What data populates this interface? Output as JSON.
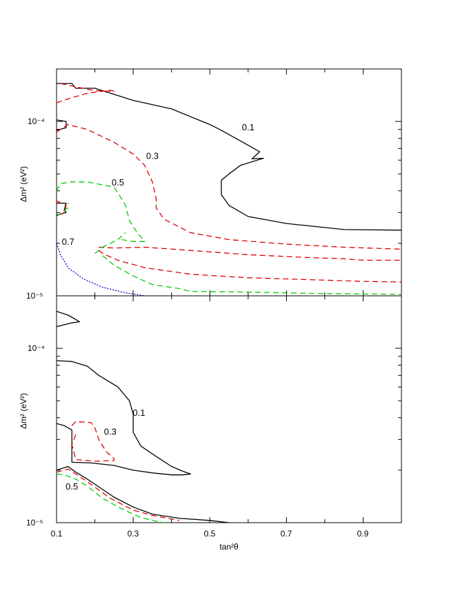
{
  "chart_data": [
    {
      "type": "line",
      "panel": "top",
      "xlim": [
        0.1,
        1.0
      ],
      "ylim": [
        1e-05,
        0.0002
      ],
      "yscale": "log",
      "ylabel": "Δm² (eV²)",
      "xlabel": "",
      "y_ticks": [
        {
          "value": 0.0001,
          "label": "10⁻⁴"
        },
        {
          "value": 1e-05,
          "label": "10⁻⁵"
        }
      ],
      "x_ticks": [],
      "grid": false,
      "colors": {
        "0.1": "#000000",
        "0.3": "#dd0000",
        "0.5": "#00cc00",
        "0.7": "#0000cc"
      },
      "contour_labels": [
        {
          "text": "0.1",
          "x": 0.6,
          "y": 8.9e-05
        },
        {
          "text": "0.3",
          "x": 0.35,
          "y": 6.1e-05
        },
        {
          "text": "0.5",
          "x": 0.26,
          "y": 4.3e-05
        },
        {
          "text": "0.7",
          "x": 0.13,
          "y": 1.96e-05
        }
      ],
      "series": [
        {
          "name": "0.1",
          "style": "solid",
          "points": [
            [
              0.1,
              0.000165
            ],
            [
              0.14,
              0.000165
            ],
            [
              0.15,
              0.000155
            ],
            [
              0.2,
              0.000155
            ],
            [
              0.3,
              0.000132
            ],
            [
              0.4,
              0.000118
            ],
            [
              0.5,
              9.6e-05
            ],
            [
              0.53,
              8.9e-05
            ],
            [
              0.6,
              7.3e-05
            ],
            [
              0.63,
              6.7e-05
            ],
            [
              0.61,
              6.1e-05
            ],
            [
              0.64,
              6.15e-05
            ],
            [
              0.58,
              5.6e-05
            ],
            [
              0.55,
              5e-05
            ],
            [
              0.53,
              4.6e-05
            ],
            [
              0.53,
              3.8e-05
            ],
            [
              0.55,
              3.3e-05
            ],
            [
              0.6,
              2.85e-05
            ],
            [
              0.7,
              2.6e-05
            ],
            [
              0.85,
              2.4e-05
            ],
            [
              1.0,
              2.38e-05
            ]
          ]
        },
        {
          "name": "0.1",
          "style": "solid",
          "points": [
            [
              0.1,
              0.000102
            ],
            [
              0.125,
              0.0001
            ],
            [
              0.125,
              9.2e-05
            ],
            [
              0.1,
              8.9e-05
            ]
          ]
        },
        {
          "name": "0.1",
          "style": "solid",
          "points": [
            [
              0.1,
              3.4e-05
            ],
            [
              0.125,
              3.4e-05
            ],
            [
              0.12,
              3.1e-05
            ],
            [
              0.125,
              3e-05
            ],
            [
              0.1,
              2.9e-05
            ]
          ]
        },
        {
          "name": "0.3",
          "style": "dashed",
          "points": [
            [
              0.1,
              0.000128
            ],
            [
              0.14,
              0.000137
            ],
            [
              0.18,
              0.000145
            ],
            [
              0.24,
              0.000151
            ],
            [
              0.25,
              0.000149
            ],
            [
              0.2,
              0.00015
            ],
            [
              0.15,
              0.000158
            ],
            [
              0.11,
              0.000165
            ]
          ]
        },
        {
          "name": "0.3",
          "style": "dashed",
          "points": [
            [
              0.1,
              8.7e-05
            ],
            [
              0.13,
              9.6e-05
            ],
            [
              0.18,
              9e-05
            ],
            [
              0.25,
              7.6e-05
            ],
            [
              0.3,
              6.5e-05
            ],
            [
              0.33,
              5.6e-05
            ],
            [
              0.35,
              4.5e-05
            ],
            [
              0.36,
              3.6e-05
            ],
            [
              0.36,
              3.2e-05
            ],
            [
              0.38,
              2.75e-05
            ],
            [
              0.45,
              2.3e-05
            ],
            [
              0.55,
              2.1e-05
            ],
            [
              0.7,
              1.98e-05
            ],
            [
              0.85,
              1.9e-05
            ],
            [
              1.0,
              1.85e-05
            ]
          ]
        },
        {
          "name": "0.3",
          "style": "dashed",
          "points": [
            [
              0.1,
              3.5e-05
            ],
            [
              0.125,
              3.3e-05
            ],
            [
              0.12,
              3e-05
            ],
            [
              0.105,
              2.9e-05
            ]
          ]
        },
        {
          "name": "0.3",
          "style": "dashed",
          "points": [
            [
              0.21,
              1.9e-05
            ],
            [
              0.25,
              1.88e-05
            ],
            [
              0.33,
              1.9e-05
            ],
            [
              0.45,
              1.82e-05
            ],
            [
              0.6,
              1.72e-05
            ],
            [
              0.75,
              1.66e-05
            ],
            [
              0.85,
              1.63e-05
            ],
            [
              0.9,
              1.6e-05
            ],
            [
              1.0,
              1.6e-05
            ]
          ]
        },
        {
          "name": "0.3",
          "style": "dashed",
          "points": [
            [
              0.21,
              1.82e-05
            ],
            [
              0.22,
              1.75e-05
            ],
            [
              0.26,
              1.6e-05
            ],
            [
              0.33,
              1.45e-05
            ],
            [
              0.45,
              1.33e-05
            ],
            [
              0.6,
              1.27e-05
            ],
            [
              0.75,
              1.24e-05
            ],
            [
              0.9,
              1.21e-05
            ],
            [
              1.0,
              1.2e-05
            ]
          ]
        },
        {
          "name": "0.5",
          "style": "dashed",
          "points": [
            [
              0.1,
              4e-05
            ],
            [
              0.11,
              4.4e-05
            ],
            [
              0.14,
              4.5e-05
            ],
            [
              0.18,
              4.5e-05
            ],
            [
              0.25,
              4.2e-05
            ],
            [
              0.26,
              3.9e-05
            ],
            [
              0.28,
              3.3e-05
            ],
            [
              0.29,
              2.7e-05
            ],
            [
              0.31,
              2.3e-05
            ],
            [
              0.33,
              2.05e-05
            ],
            [
              0.3,
              2.05e-05
            ],
            [
              0.27,
              2.1e-05
            ]
          ]
        },
        {
          "name": "0.5",
          "style": "dashed",
          "points": [
            [
              0.1,
              2.85e-05
            ],
            [
              0.13,
              3.2e-05
            ],
            [
              0.13,
              3.4e-05
            ]
          ]
        },
        {
          "name": "0.5",
          "style": "dashed",
          "points": [
            [
              0.2,
              1.75e-05
            ],
            [
              0.22,
              1.9e-05
            ],
            [
              0.26,
              2.1e-05
            ],
            [
              0.28,
              2.3e-05
            ]
          ]
        },
        {
          "name": "0.5",
          "style": "dashed",
          "points": [
            [
              0.22,
              1.7e-05
            ],
            [
              0.25,
              1.5e-05
            ],
            [
              0.3,
              1.3e-05
            ],
            [
              0.35,
              1.16e-05
            ],
            [
              0.42,
              1.1e-05
            ],
            [
              0.45,
              1.06e-05
            ],
            [
              0.6,
              1.05e-05
            ],
            [
              0.8,
              1.03e-05
            ],
            [
              1.0,
              1.02e-05
            ]
          ]
        },
        {
          "name": "0.7",
          "style": "dotted",
          "points": [
            [
              0.1,
              2e-05
            ],
            [
              0.11,
              1.72e-05
            ],
            [
              0.13,
              1.45e-05
            ],
            [
              0.17,
              1.25e-05
            ],
            [
              0.22,
              1.12e-05
            ],
            [
              0.28,
              1.04e-05
            ],
            [
              0.33,
              1e-05
            ]
          ]
        }
      ]
    },
    {
      "type": "line",
      "panel": "bottom",
      "xlim": [
        0.1,
        1.0
      ],
      "ylim": [
        1e-05,
        0.0002
      ],
      "yscale": "log",
      "ylabel": "Δm² (eV²)",
      "xlabel": "tan²θ",
      "y_ticks": [
        {
          "value": 0.0001,
          "label": "10⁻⁴"
        },
        {
          "value": 1e-05,
          "label": "10⁻⁵"
        }
      ],
      "x_ticks": [
        {
          "value": 0.1,
          "label": "0.1"
        },
        {
          "value": 0.3,
          "label": "0.3"
        },
        {
          "value": 0.5,
          "label": "0.5"
        },
        {
          "value": 0.7,
          "label": "0.7"
        },
        {
          "value": 0.9,
          "label": "0.9"
        }
      ],
      "grid": false,
      "colors": {
        "0.1": "#000000",
        "0.3": "#dd0000",
        "0.5": "#00cc00"
      },
      "contour_labels": [
        {
          "text": "0.1",
          "x": 0.315,
          "y": 4.1e-05
        },
        {
          "text": "0.3",
          "x": 0.24,
          "y": 3.2e-05
        },
        {
          "text": "0.5",
          "x": 0.14,
          "y": 1.55e-05
        }
      ],
      "series": [
        {
          "name": "0.1",
          "style": "solid",
          "points": [
            [
              0.1,
              0.000163
            ],
            [
              0.13,
              0.000155
            ],
            [
              0.16,
              0.000142
            ],
            [
              0.14,
              0.00014
            ],
            [
              0.1,
              0.000133
            ]
          ]
        },
        {
          "name": "0.1",
          "style": "solid",
          "points": [
            [
              0.1,
              8.5e-05
            ],
            [
              0.14,
              8.4e-05
            ],
            [
              0.18,
              7.9e-05
            ],
            [
              0.21,
              7e-05
            ],
            [
              0.26,
              6e-05
            ],
            [
              0.29,
              5e-05
            ],
            [
              0.3,
              4.2e-05
            ],
            [
              0.3,
              3.3e-05
            ],
            [
              0.32,
              2.75e-05
            ],
            [
              0.36,
              2.4e-05
            ],
            [
              0.4,
              2.1e-05
            ],
            [
              0.43,
              1.97e-05
            ],
            [
              0.45,
              1.9e-05
            ],
            [
              0.43,
              1.88e-05
            ],
            [
              0.4,
              1.88e-05
            ],
            [
              0.35,
              1.93e-05
            ],
            [
              0.3,
              2e-05
            ],
            [
              0.25,
              2.13e-05
            ],
            [
              0.19,
              2.2e-05
            ],
            [
              0.14,
              2.22e-05
            ],
            [
              0.14,
              3.4e-05
            ],
            [
              0.12,
              3.6e-05
            ],
            [
              0.1,
              3.7e-05
            ]
          ]
        },
        {
          "name": "0.1",
          "style": "solid",
          "points": [
            [
              0.1,
              2e-05
            ],
            [
              0.13,
              2.1e-05
            ],
            [
              0.15,
              1.95e-05
            ],
            [
              0.18,
              1.78e-05
            ],
            [
              0.25,
              1.4e-05
            ],
            [
              0.3,
              1.23e-05
            ],
            [
              0.35,
              1.12e-05
            ],
            [
              0.42,
              1.06e-05
            ],
            [
              0.5,
              1.03e-05
            ],
            [
              0.55,
              1e-05
            ]
          ]
        },
        {
          "name": "0.3",
          "style": "dashed",
          "points": [
            [
              0.14,
              3.6e-05
            ],
            [
              0.15,
              3.8e-05
            ],
            [
              0.19,
              3.75e-05
            ],
            [
              0.2,
              3.5e-05
            ],
            [
              0.21,
              3e-05
            ],
            [
              0.23,
              2.55e-05
            ],
            [
              0.25,
              2.33e-05
            ],
            [
              0.25,
              2.27e-05
            ],
            [
              0.2,
              2.25e-05
            ],
            [
              0.15,
              2.3e-05
            ],
            [
              0.14,
              2.8e-05
            ],
            [
              0.15,
              3.2e-05
            ]
          ]
        },
        {
          "name": "0.3",
          "style": "dashed",
          "points": [
            [
              0.1,
              1.95e-05
            ],
            [
              0.13,
              2.03e-05
            ],
            [
              0.15,
              1.9e-05
            ],
            [
              0.18,
              1.72e-05
            ],
            [
              0.24,
              1.38e-05
            ],
            [
              0.3,
              1.18e-05
            ],
            [
              0.35,
              1.1e-05
            ],
            [
              0.4,
              1.05e-05
            ],
            [
              0.42,
              1.03e-05
            ]
          ]
        },
        {
          "name": "0.5",
          "style": "dashed",
          "points": [
            [
              0.1,
              1.9e-05
            ],
            [
              0.12,
              1.88e-05
            ],
            [
              0.15,
              1.78e-05
            ],
            [
              0.18,
              1.62e-05
            ],
            [
              0.22,
              1.38e-05
            ],
            [
              0.27,
              1.2e-05
            ],
            [
              0.32,
              1.07e-05
            ],
            [
              0.36,
              1.02e-05
            ],
            [
              0.38,
              1e-05
            ]
          ]
        }
      ]
    }
  ]
}
